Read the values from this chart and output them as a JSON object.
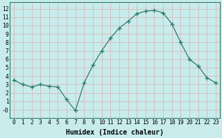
{
  "x": [
    0,
    1,
    2,
    3,
    4,
    5,
    6,
    7,
    8,
    9,
    10,
    11,
    12,
    13,
    14,
    15,
    16,
    17,
    18,
    19,
    20,
    21,
    22,
    23
  ],
  "y": [
    3.5,
    3.0,
    2.7,
    3.0,
    2.8,
    2.7,
    1.2,
    -0.1,
    3.2,
    5.3,
    7.0,
    8.5,
    9.7,
    10.5,
    11.4,
    11.7,
    11.8,
    11.5,
    10.2,
    8.0,
    6.0,
    5.2,
    3.8,
    3.2
  ],
  "line_color": "#2d7a6a",
  "marker": "+",
  "marker_size": 4,
  "marker_lw": 1.0,
  "bg_color": "#c8ecec",
  "grid_color": "#d8b8b8",
  "xlabel": "Humidex (Indice chaleur)",
  "xlim": [
    -0.5,
    23.5
  ],
  "ylim": [
    -1.0,
    12.8
  ],
  "yticks": [
    0,
    1,
    2,
    3,
    4,
    5,
    6,
    7,
    8,
    9,
    10,
    11,
    12
  ],
  "xticks": [
    0,
    1,
    2,
    3,
    4,
    5,
    6,
    7,
    8,
    9,
    10,
    11,
    12,
    13,
    14,
    15,
    16,
    17,
    18,
    19,
    20,
    21,
    22,
    23
  ],
  "tick_label_fontsize": 5.8,
  "xlabel_fontsize": 7.0,
  "axis_color": "#2d7a6a",
  "linewidth": 0.9
}
